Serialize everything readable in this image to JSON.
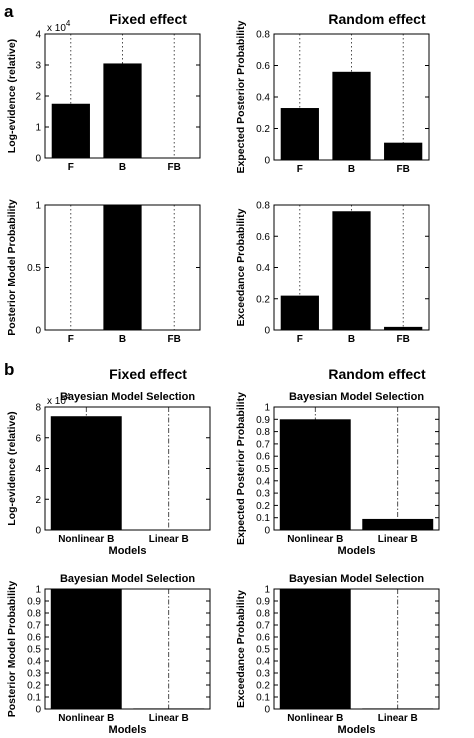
{
  "figure": {
    "panel_labels": [
      "a",
      "b"
    ],
    "section_titles": {
      "a_left": "Fixed effect",
      "a_right": "Random effect",
      "b_left": "Fixed effect",
      "b_right": "Random effect"
    }
  },
  "chart_data": [
    {
      "id": "a1",
      "type": "bar",
      "section": "a",
      "title": "",
      "categories": [
        "F",
        "B",
        "FB"
      ],
      "values": [
        1.75,
        3.05,
        0
      ],
      "ylabel": "Log-evidence (relative)",
      "xlabel": "",
      "ylim": [
        0,
        4
      ],
      "yticks": [
        0,
        1,
        2,
        3,
        4
      ],
      "ytick_labels": [
        "0",
        "1",
        "2",
        "3",
        "4"
      ],
      "multiplier": "x 10",
      "multiplier_exp": "4",
      "grid": "vertical dotted at categories"
    },
    {
      "id": "a2",
      "type": "bar",
      "section": "a",
      "title": "",
      "categories": [
        "F",
        "B",
        "FB"
      ],
      "values": [
        0.33,
        0.56,
        0.11
      ],
      "ylabel": "Expected Posterior Probability",
      "xlabel": "",
      "ylim": [
        0,
        0.8
      ],
      "yticks": [
        0,
        0.2,
        0.4,
        0.6,
        0.8
      ],
      "ytick_labels": [
        "0",
        "0.2",
        "0.4",
        "0.6",
        "0.8"
      ],
      "grid": "vertical dotted at categories"
    },
    {
      "id": "a3",
      "type": "bar",
      "section": "a",
      "title": "",
      "categories": [
        "F",
        "B",
        "FB"
      ],
      "values": [
        0,
        1,
        0
      ],
      "ylabel": "Posterior Model Probability",
      "xlabel": "",
      "ylim": [
        0,
        1
      ],
      "yticks": [
        0,
        0.5,
        1
      ],
      "ytick_labels": [
        "0",
        "0.5",
        "1"
      ],
      "grid": "vertical dotted at categories"
    },
    {
      "id": "a4",
      "type": "bar",
      "section": "a",
      "title": "",
      "categories": [
        "F",
        "B",
        "FB"
      ],
      "values": [
        0.22,
        0.76,
        0.02
      ],
      "ylabel": "Exceedance Probability",
      "xlabel": "",
      "ylim": [
        0,
        0.8
      ],
      "yticks": [
        0,
        0.2,
        0.4,
        0.6,
        0.8
      ],
      "ytick_labels": [
        "0",
        "0.2",
        "0.4",
        "0.6",
        "0.8"
      ],
      "grid": "vertical dotted at categories"
    },
    {
      "id": "b1",
      "type": "bar",
      "section": "b",
      "title": "Bayesian Model Selection",
      "categories": [
        "Nonlinear B",
        "Linear B"
      ],
      "values": [
        7.4,
        0
      ],
      "ylabel": "Log-evidence (relative)",
      "xlabel": "Models",
      "ylim": [
        0,
        8
      ],
      "yticks": [
        0,
        2,
        4,
        6,
        8
      ],
      "ytick_labels": [
        "0",
        "2",
        "4",
        "6",
        "8"
      ],
      "multiplier": "x 10",
      "multiplier_exp": "4",
      "grid": "vertical dash-dot at categories"
    },
    {
      "id": "b2",
      "type": "bar",
      "section": "b",
      "title": "Bayesian Model Selection",
      "categories": [
        "Nonlinear B",
        "Linear B"
      ],
      "values": [
        0.9,
        0.09
      ],
      "ylabel": "Expected Posterior Probability",
      "xlabel": "Models",
      "ylim": [
        0,
        1
      ],
      "yticks": [
        0,
        0.1,
        0.2,
        0.3,
        0.4,
        0.5,
        0.6,
        0.7,
        0.8,
        0.9,
        1
      ],
      "ytick_labels": [
        "0",
        "0.1",
        "0.2",
        "0.3",
        "0.4",
        "0.5",
        "0.6",
        "0.7",
        "0.8",
        "0.9",
        "1"
      ],
      "grid": "vertical dash-dot at categories"
    },
    {
      "id": "b3",
      "type": "bar",
      "section": "b",
      "title": "Bayesian Model Selection",
      "categories": [
        "Nonlinear B",
        "Linear B"
      ],
      "values": [
        1,
        0.005
      ],
      "ylabel": "Posterior Model Probability",
      "xlabel": "Models",
      "ylim": [
        0,
        1
      ],
      "yticks": [
        0,
        0.1,
        0.2,
        0.3,
        0.4,
        0.5,
        0.6,
        0.7,
        0.8,
        0.9,
        1
      ],
      "ytick_labels": [
        "0",
        "0.1",
        "0.2",
        "0.3",
        "0.4",
        "0.5",
        "0.6",
        "0.7",
        "0.8",
        "0.9",
        "1"
      ],
      "grid": "vertical dash-dot at categories"
    },
    {
      "id": "b4",
      "type": "bar",
      "section": "b",
      "title": "Bayesian Model Selection",
      "categories": [
        "Nonlinear B",
        "Linear B"
      ],
      "values": [
        1,
        0.005
      ],
      "ylabel": "Exceedance Probability",
      "xlabel": "Models",
      "ylim": [
        0,
        1
      ],
      "yticks": [
        0,
        0.1,
        0.2,
        0.3,
        0.4,
        0.5,
        0.6,
        0.7,
        0.8,
        0.9,
        1
      ],
      "ytick_labels": [
        "0",
        "0.1",
        "0.2",
        "0.3",
        "0.4",
        "0.5",
        "0.6",
        "0.7",
        "0.8",
        "0.9",
        "1"
      ],
      "grid": "vertical dash-dot at categories"
    }
  ]
}
